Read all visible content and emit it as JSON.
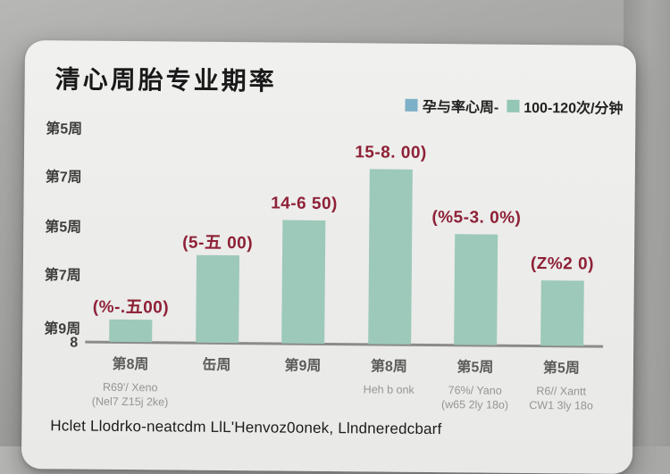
{
  "page": {
    "title": "清心周胎专业期率",
    "caption": "Hclet Llodrko-neatcdm LlL'Henvoz0onek, Llndneredcbarf"
  },
  "legend": {
    "items": [
      {
        "icon": "blue-square-icon",
        "label": "孕与率心周-",
        "color": "#7cb0c6"
      },
      {
        "icon": "teal-square-icon",
        "label": "100-120次/分钟",
        "color": "#93c6b5"
      }
    ]
  },
  "chart_data": {
    "type": "bar",
    "title": "清心周胎专业期率",
    "legend_entries": [
      "孕与率心周-",
      "100-120次/分钟"
    ],
    "legend_position": "top-right",
    "grid": false,
    "y_axis_labels": [
      "第5周",
      "第7周",
      "第5周",
      "第7周",
      "第9周",
      "8"
    ],
    "categories": [
      "第8周",
      "缶周",
      "第9周",
      "第8周",
      "第5周",
      "第5周"
    ],
    "values": [
      25,
      98,
      138,
      196,
      124,
      73
    ],
    "value_labels": [
      "(%-.五00)",
      "(5-五 00)",
      "14-6 50)",
      "15-8. 00)",
      "(%5-3. 0%)",
      "(Z%2 0)"
    ],
    "sub_labels": [
      [
        "R69'/ Xeno",
        "(Nel7 Z15j 2ke)"
      ],
      [],
      [],
      [
        "Heh b onk"
      ],
      [
        "76%/ Yano",
        "(w65 2ly 18o)"
      ],
      [
        "R6// Xantt",
        "CW1 3ly 18o"
      ]
    ],
    "bar_color": "#9cc9ba",
    "value_label_color": "#8e2137",
    "caption": "Hclet Llodrko-neatcdm LlL'Henvoz0onek, Llndneredcbarf"
  }
}
